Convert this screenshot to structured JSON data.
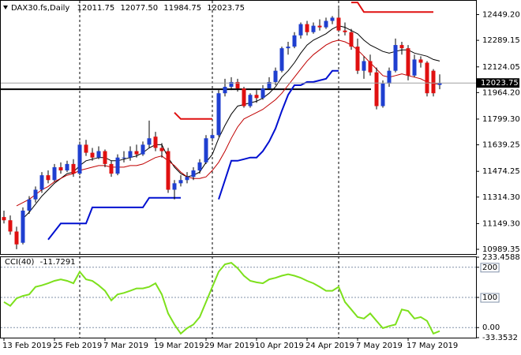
{
  "chart_data": {
    "type": "candlestick",
    "title": "DAX30.fs,Daily",
    "last_bar_labels": [
      "12011.75",
      "12077.50",
      "11984.75",
      "12023.75"
    ],
    "categories": [
      "13 Feb 2019",
      null,
      null,
      null,
      null,
      null,
      null,
      null,
      "25 Feb 2019",
      null,
      null,
      null,
      null,
      null,
      null,
      null,
      "7 Mar 2019",
      null,
      null,
      null,
      null,
      null,
      null,
      null,
      "19 Mar 2019",
      null,
      null,
      null,
      null,
      null,
      null,
      null,
      "29 Mar 2019",
      null,
      null,
      null,
      null,
      null,
      null,
      null,
      "10 Apr 2019",
      null,
      null,
      null,
      null,
      null,
      null,
      null,
      "24 Apr 2019",
      null,
      null,
      null,
      null,
      null,
      null,
      null,
      "7 May 2019",
      null,
      null,
      null,
      null,
      null,
      null,
      null,
      "17 May 2019",
      null,
      null,
      null,
      null,
      null
    ],
    "candles": [
      [
        11190,
        11230,
        11150,
        11170
      ],
      [
        11170,
        11200,
        11080,
        11100
      ],
      [
        11100,
        11130,
        10990,
        11020
      ],
      [
        11030,
        11250,
        11020,
        11230
      ],
      [
        11230,
        11320,
        11210,
        11300
      ],
      [
        11300,
        11380,
        11280,
        11360
      ],
      [
        11360,
        11470,
        11340,
        11450
      ],
      [
        11450,
        11480,
        11400,
        11420
      ],
      [
        11420,
        11520,
        11410,
        11500
      ],
      [
        11500,
        11530,
        11460,
        11480
      ],
      [
        11480,
        11540,
        11470,
        11520
      ],
      [
        11520,
        11550,
        11440,
        11460
      ],
      [
        11460,
        11660,
        11450,
        11640
      ],
      [
        11640,
        11670,
        11570,
        11590
      ],
      [
        11590,
        11620,
        11540,
        11560
      ],
      [
        11560,
        11630,
        11550,
        11600
      ],
      [
        11600,
        11610,
        11500,
        11520
      ],
      [
        11520,
        11540,
        11440,
        11460
      ],
      [
        11460,
        11580,
        11450,
        11560
      ],
      [
        11560,
        11600,
        11530,
        11560
      ],
      [
        11560,
        11630,
        11540,
        11600
      ],
      [
        11600,
        11640,
        11560,
        11580
      ],
      [
        11580,
        11660,
        11570,
        11640
      ],
      [
        11640,
        11790,
        11620,
        11680
      ],
      [
        11690,
        11720,
        11600,
        11620
      ],
      [
        11620,
        11650,
        11560,
        11600
      ],
      [
        11600,
        11620,
        11340,
        11360
      ],
      [
        11360,
        11420,
        11300,
        11400
      ],
      [
        11400,
        11450,
        11380,
        11420
      ],
      [
        11420,
        11470,
        11400,
        11440
      ],
      [
        11440,
        11500,
        11420,
        11480
      ],
      [
        11480,
        11550,
        11460,
        11530
      ],
      [
        11530,
        11700,
        11520,
        11680
      ],
      [
        11680,
        11730,
        11660,
        11700
      ],
      [
        11700,
        11980,
        11690,
        11960
      ],
      [
        11960,
        12050,
        11940,
        12000
      ],
      [
        12000,
        12060,
        11980,
        12030
      ],
      [
        12030,
        12050,
        11970,
        11990
      ],
      [
        11990,
        12000,
        11870,
        11880
      ],
      [
        11880,
        11960,
        11870,
        11950
      ],
      [
        11950,
        11980,
        11900,
        11930
      ],
      [
        11930,
        12010,
        11920,
        11990
      ],
      [
        11990,
        12060,
        11980,
        12030
      ],
      [
        12030,
        12120,
        12010,
        12100
      ],
      [
        12100,
        12250,
        12090,
        12240
      ],
      [
        12240,
        12280,
        12200,
        12250
      ],
      [
        12250,
        12340,
        12240,
        12320
      ],
      [
        12320,
        12400,
        12300,
        12390
      ],
      [
        12390,
        12410,
        12320,
        12340
      ],
      [
        12340,
        12400,
        12330,
        12380
      ],
      [
        12380,
        12420,
        12350,
        12370
      ],
      [
        12370,
        12430,
        12360,
        12410
      ],
      [
        12410,
        12440,
        12390,
        12430
      ],
      [
        12430,
        12490,
        12340,
        12350
      ],
      [
        12350,
        12400,
        12320,
        12340
      ],
      [
        12340,
        12360,
        12230,
        12250
      ],
      [
        12250,
        12300,
        12080,
        12100
      ],
      [
        12100,
        12190,
        12050,
        12160
      ],
      [
        12160,
        12200,
        12070,
        12090
      ],
      [
        12090,
        12120,
        11860,
        11880
      ],
      [
        11880,
        12040,
        11870,
        12020
      ],
      [
        12020,
        12120,
        12000,
        12100
      ],
      [
        12100,
        12300,
        12090,
        12260
      ],
      [
        12260,
        12280,
        12200,
        12240
      ],
      [
        12240,
        12260,
        12040,
        12070
      ],
      [
        12070,
        12200,
        12060,
        12170
      ],
      [
        12170,
        12190,
        12120,
        12150
      ],
      [
        12150,
        12160,
        11940,
        11960
      ],
      [
        12100,
        12110,
        11940,
        11960
      ],
      [
        12011.75,
        12077.5,
        11984.75,
        12023.75
      ]
    ],
    "up_color": "#1f3fd0",
    "down_color": "#e01010",
    "lines": [
      {
        "color": "#000000",
        "width": 1,
        "values": [
          null,
          null,
          null,
          11180,
          11220,
          11270,
          11320,
          11360,
          11400,
          11430,
          11460,
          11470,
          11510,
          11540,
          11550,
          11560,
          11560,
          11540,
          11540,
          11550,
          11560,
          11570,
          11590,
          11620,
          11640,
          11640,
          11560,
          11500,
          11460,
          11440,
          11450,
          11470,
          11530,
          11580,
          11680,
          11760,
          11830,
          11880,
          11890,
          11900,
          11910,
          11930,
          11960,
          12000,
          12060,
          12100,
          12150,
          12210,
          12260,
          12290,
          12310,
          12330,
          12360,
          12380,
          12370,
          12350,
          12330,
          12290,
          12260,
          12240,
          12220,
          12210,
          12220,
          12230,
          12230,
          12210,
          12200,
          12190,
          12170,
          12160
        ]
      },
      {
        "color": "#c00000",
        "width": 1,
        "values": [
          null,
          null,
          11260,
          11280,
          11300,
          11330,
          11360,
          11380,
          11410,
          11430,
          11450,
          11460,
          11480,
          11490,
          11500,
          11510,
          11510,
          11500,
          11500,
          11500,
          11510,
          11510,
          11520,
          11540,
          11560,
          11570,
          11540,
          11510,
          11470,
          11440,
          11430,
          11430,
          11440,
          11480,
          11530,
          11600,
          11680,
          11750,
          11800,
          11820,
          11840,
          11860,
          11890,
          11920,
          11960,
          12010,
          12060,
          12110,
          12160,
          12200,
          12230,
          12260,
          12280,
          12290,
          12280,
          12260,
          12230,
          12190,
          12150,
          12110,
          12070,
          12060,
          12070,
          12080,
          12070,
          12060,
          12050,
          12030,
          12020,
          12017
        ]
      },
      {
        "color": "#0010d0",
        "width": 2,
        "values": [
          null,
          null,
          null,
          null,
          null,
          null,
          null,
          11050,
          11100,
          11150,
          11150,
          11150,
          11150,
          11150,
          11250,
          11250,
          11250,
          11250,
          11250,
          11250,
          11250,
          11250,
          11250,
          11310,
          11310,
          11310,
          11310,
          11310,
          11310,
          null,
          null,
          null,
          null,
          null,
          11300,
          11420,
          11540,
          11540,
          11550,
          11560,
          11560,
          11600,
          11660,
          11740,
          11850,
          11950,
          12010,
          12010,
          12030,
          12030,
          12040,
          12050,
          12100,
          12100,
          null,
          null,
          null,
          null,
          null,
          null,
          null,
          null,
          null,
          null,
          null,
          null,
          null,
          null,
          null,
          null
        ]
      },
      {
        "color": "#e01010",
        "width": 2,
        "values": [
          null,
          null,
          null,
          null,
          null,
          null,
          null,
          null,
          null,
          null,
          null,
          null,
          null,
          null,
          null,
          null,
          null,
          null,
          null,
          null,
          null,
          null,
          null,
          null,
          null,
          null,
          null,
          11840,
          11800,
          11800,
          11800,
          11800,
          11800,
          11800,
          null,
          null,
          null,
          null,
          null,
          null,
          null,
          null,
          null,
          null,
          null,
          null,
          null,
          null,
          null,
          null,
          null,
          null,
          null,
          null,
          null,
          12525,
          12525,
          12465,
          12465,
          12465,
          12465,
          12465,
          12465,
          12465,
          12465,
          12465,
          12465,
          12465,
          12465,
          null
        ]
      }
    ],
    "level_line": 11985,
    "period_separators": [
      12,
      33,
      53
    ],
    "ylim": [
      10960,
      12540
    ],
    "yticks": [
      {
        "value": 12449.2,
        "label": "12449.20"
      },
      12289.15,
      12124.05,
      {
        "value": 11964.2,
        "label": "11964.20"
      },
      {
        "value": 11799.3,
        "label": "11799.30"
      },
      11639.25,
      11474.25,
      {
        "value": 11314.3,
        "label": "11314.30"
      },
      {
        "value": 11149.3,
        "label": "11149.30"
      },
      10989.35
    ],
    "cci_name": "CCI(40)",
    "cci_color": "#7de01c",
    "cci": [
      85,
      72,
      97,
      105,
      110,
      135,
      140,
      147,
      155,
      160,
      155,
      147,
      185,
      160,
      155,
      140,
      122,
      90,
      110,
      115,
      122,
      130,
      130,
      135,
      147,
      110,
      47,
      10,
      -20,
      -2,
      10,
      35,
      85,
      135,
      185,
      210,
      215,
      197,
      172,
      155,
      150,
      147,
      160,
      165,
      172,
      177,
      172,
      165,
      155,
      147,
      135,
      122,
      122,
      135,
      85,
      60,
      35,
      30,
      47,
      22,
      -2,
      5,
      10,
      60,
      55,
      30,
      35,
      22,
      -20,
      -11.7291
    ],
    "y2lim": [
      -33.3532,
      233.4588
    ],
    "y2ticks": [
      -33.3532,
      {
        "value": 0,
        "label": "0.00"
      },
      100,
      200,
      233.4588
    ]
  }
}
